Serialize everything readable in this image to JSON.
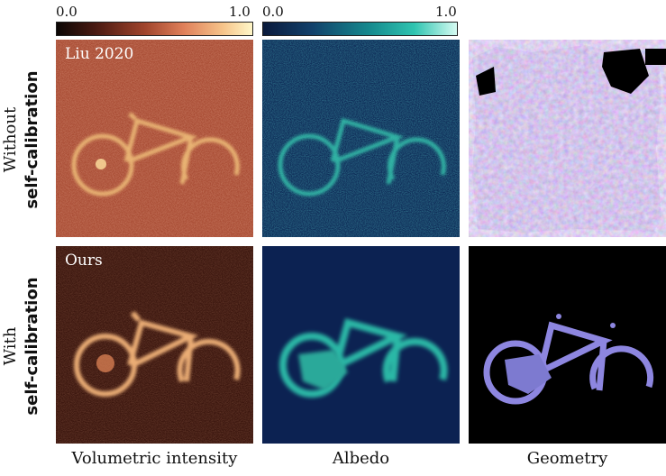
{
  "colorbars": [
    {
      "name": "intensity",
      "min_label": "0.0",
      "max_label": "1.0",
      "colors": [
        "#0b0604",
        "#4a1a12",
        "#a0442c",
        "#e0805a",
        "#f6c48a",
        "#fff7c8"
      ]
    },
    {
      "name": "albedo",
      "min_label": "0.0",
      "max_label": "1.0",
      "colors": [
        "#0a1a3c",
        "#12406a",
        "#168a8e",
        "#2fc4b0",
        "#d6fbf2"
      ]
    }
  ],
  "rows": [
    {
      "label_line1": "Without",
      "label_line2": "self-calibration",
      "method": "Liu 2020"
    },
    {
      "label_line1": "With",
      "label_line2": "self-calibration",
      "method": "Ours"
    }
  ],
  "columns": [
    {
      "label": "Volumetric intensity"
    },
    {
      "label": "Albedo"
    },
    {
      "label": "Geometry"
    }
  ]
}
